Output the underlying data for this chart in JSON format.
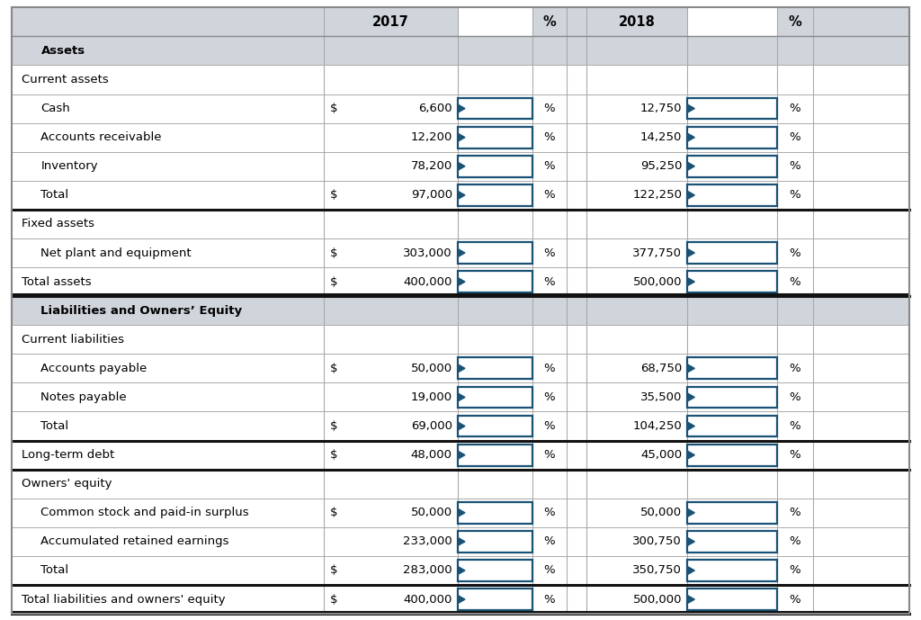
{
  "header_bg": "#d0d4db",
  "white": "#ffffff",
  "border_thin": "#aaaaaa",
  "border_thick": "#111111",
  "blue_box_fill": "#ffffff",
  "blue_box_edge": "#1a5276",
  "text_color": "#000000",
  "figsize": [
    10.24,
    6.89
  ],
  "dpi": 100,
  "rows": [
    {
      "label": "Assets",
      "indent": 1,
      "bold": true,
      "dollar": "",
      "val17": "",
      "val18": "",
      "has_pct": false,
      "section_header": true,
      "thick_bot": false,
      "double_bot": false,
      "blue17": false,
      "blue18": false
    },
    {
      "label": "Current assets",
      "indent": 0,
      "bold": false,
      "dollar": "",
      "val17": "",
      "val18": "",
      "has_pct": false,
      "section_header": false,
      "thick_bot": false,
      "double_bot": false,
      "blue17": false,
      "blue18": false
    },
    {
      "label": "Cash",
      "indent": 1,
      "bold": false,
      "dollar": "$",
      "val17": "6,600",
      "val18": "12,750",
      "has_pct": true,
      "section_header": false,
      "thick_bot": false,
      "double_bot": false,
      "blue17": true,
      "blue18": true
    },
    {
      "label": "Accounts receivable",
      "indent": 1,
      "bold": false,
      "dollar": "",
      "val17": "12,200",
      "val18": "14,250",
      "has_pct": true,
      "section_header": false,
      "thick_bot": false,
      "double_bot": false,
      "blue17": true,
      "blue18": true
    },
    {
      "label": "Inventory",
      "indent": 1,
      "bold": false,
      "dollar": "",
      "val17": "78,200",
      "val18": "95,250",
      "has_pct": true,
      "section_header": false,
      "thick_bot": false,
      "double_bot": false,
      "blue17": true,
      "blue18": true
    },
    {
      "label": "Total",
      "indent": 1,
      "bold": false,
      "dollar": "$",
      "val17": "97,000",
      "val18": "122,250",
      "has_pct": true,
      "section_header": false,
      "thick_bot": true,
      "double_bot": false,
      "blue17": true,
      "blue18": true
    },
    {
      "label": "Fixed assets",
      "indent": 0,
      "bold": false,
      "dollar": "",
      "val17": "",
      "val18": "",
      "has_pct": false,
      "section_header": false,
      "thick_bot": false,
      "double_bot": false,
      "blue17": false,
      "blue18": false
    },
    {
      "label": "Net plant and equipment",
      "indent": 1,
      "bold": false,
      "dollar": "$",
      "val17": "303,000",
      "val18": "377,750",
      "has_pct": true,
      "section_header": false,
      "thick_bot": false,
      "double_bot": false,
      "blue17": true,
      "blue18": true
    },
    {
      "label": "Total assets",
      "indent": 0,
      "bold": false,
      "dollar": "$",
      "val17": "400,000",
      "val18": "500,000",
      "has_pct": true,
      "section_header": false,
      "thick_bot": true,
      "double_bot": true,
      "blue17": true,
      "blue18": true
    },
    {
      "label": "Liabilities and Owners’ Equity",
      "indent": 1,
      "bold": true,
      "dollar": "",
      "val17": "",
      "val18": "",
      "has_pct": false,
      "section_header": true,
      "thick_bot": false,
      "double_bot": false,
      "blue17": false,
      "blue18": false
    },
    {
      "label": "Current liabilities",
      "indent": 0,
      "bold": false,
      "dollar": "",
      "val17": "",
      "val18": "",
      "has_pct": false,
      "section_header": false,
      "thick_bot": false,
      "double_bot": false,
      "blue17": false,
      "blue18": false
    },
    {
      "label": "Accounts payable",
      "indent": 1,
      "bold": false,
      "dollar": "$",
      "val17": "50,000",
      "val18": "68,750",
      "has_pct": true,
      "section_header": false,
      "thick_bot": false,
      "double_bot": false,
      "blue17": true,
      "blue18": true
    },
    {
      "label": "Notes payable",
      "indent": 1,
      "bold": false,
      "dollar": "",
      "val17": "19,000",
      "val18": "35,500",
      "has_pct": true,
      "section_header": false,
      "thick_bot": false,
      "double_bot": false,
      "blue17": true,
      "blue18": true
    },
    {
      "label": "Total",
      "indent": 1,
      "bold": false,
      "dollar": "$",
      "val17": "69,000",
      "val18": "104,250",
      "has_pct": true,
      "section_header": false,
      "thick_bot": true,
      "double_bot": false,
      "blue17": true,
      "blue18": true
    },
    {
      "label": "Long-term debt",
      "indent": 0,
      "bold": false,
      "dollar": "$",
      "val17": "48,000",
      "val18": "45,000",
      "has_pct": true,
      "section_header": false,
      "thick_bot": true,
      "double_bot": false,
      "blue17": true,
      "blue18": true
    },
    {
      "label": "Owners' equity",
      "indent": 0,
      "bold": false,
      "dollar": "",
      "val17": "",
      "val18": "",
      "has_pct": false,
      "section_header": false,
      "thick_bot": false,
      "double_bot": false,
      "blue17": false,
      "blue18": false
    },
    {
      "label": "Common stock and paid-in surplus",
      "indent": 1,
      "bold": false,
      "dollar": "$",
      "val17": "50,000",
      "val18": "50,000",
      "has_pct": true,
      "section_header": false,
      "thick_bot": false,
      "double_bot": false,
      "blue17": true,
      "blue18": true
    },
    {
      "label": "Accumulated retained earnings",
      "indent": 1,
      "bold": false,
      "dollar": "",
      "val17": "233,000",
      "val18": "300,750",
      "has_pct": true,
      "section_header": false,
      "thick_bot": false,
      "double_bot": false,
      "blue17": true,
      "blue18": true
    },
    {
      "label": "Total",
      "indent": 1,
      "bold": false,
      "dollar": "$",
      "val17": "283,000",
      "val18": "350,750",
      "has_pct": true,
      "section_header": false,
      "thick_bot": true,
      "double_bot": false,
      "blue17": true,
      "blue18": true
    },
    {
      "label": "Total liabilities and owners' equity",
      "indent": 0,
      "bold": false,
      "dollar": "$",
      "val17": "400,000",
      "val18": "500,000",
      "has_pct": true,
      "section_header": false,
      "thick_bot": true,
      "double_bot": true,
      "blue17": true,
      "blue18": true
    }
  ]
}
